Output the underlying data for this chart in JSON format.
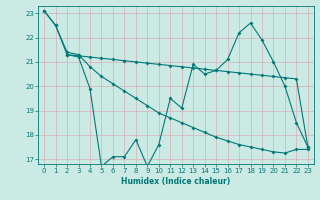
{
  "xlabel": "Humidex (Indice chaleur)",
  "bg_color": "#cceae4",
  "grid_major_color": "#c0ddd8",
  "grid_minor_color": "#d8f0ec",
  "line_color": "#007878",
  "xlim": [
    -0.5,
    23.5
  ],
  "ylim": [
    16.8,
    23.3
  ],
  "yticks": [
    17,
    18,
    19,
    20,
    21,
    22,
    23
  ],
  "xticks": [
    0,
    1,
    2,
    3,
    4,
    5,
    6,
    7,
    8,
    9,
    10,
    11,
    12,
    13,
    14,
    15,
    16,
    17,
    18,
    19,
    20,
    21,
    22,
    23
  ],
  "line1_x": [
    0,
    1,
    2,
    3,
    4,
    5,
    6,
    7,
    8,
    9,
    10,
    11,
    12,
    13,
    14,
    15,
    16,
    17,
    18,
    19,
    20,
    21,
    22,
    23
  ],
  "line1_y": [
    23.1,
    22.5,
    21.3,
    21.2,
    19.9,
    16.7,
    17.1,
    17.1,
    17.8,
    16.7,
    17.6,
    19.5,
    19.1,
    20.9,
    20.5,
    20.65,
    21.1,
    22.2,
    22.6,
    21.9,
    21.0,
    20.0,
    18.5,
    17.5
  ],
  "line2_x": [
    2,
    3,
    4,
    5,
    6,
    7,
    8,
    9,
    10,
    11,
    12,
    13,
    14,
    15,
    16,
    17,
    18,
    19,
    20,
    21,
    22,
    23
  ],
  "line2_y": [
    21.3,
    21.25,
    21.2,
    21.15,
    21.1,
    21.05,
    21.0,
    20.95,
    20.9,
    20.85,
    20.8,
    20.75,
    20.7,
    20.65,
    20.6,
    20.55,
    20.5,
    20.45,
    20.4,
    20.35,
    20.3,
    17.5
  ],
  "line3_x": [
    0,
    1,
    2,
    3,
    4,
    5,
    6,
    7,
    8,
    9,
    10,
    11,
    12,
    13,
    14,
    15,
    16,
    17,
    18,
    19,
    20,
    21,
    22,
    23
  ],
  "line3_y": [
    23.1,
    22.5,
    21.4,
    21.3,
    20.8,
    20.4,
    20.1,
    19.8,
    19.5,
    19.2,
    18.9,
    18.7,
    18.5,
    18.3,
    18.1,
    17.9,
    17.75,
    17.6,
    17.5,
    17.4,
    17.3,
    17.25,
    17.4,
    17.4
  ]
}
